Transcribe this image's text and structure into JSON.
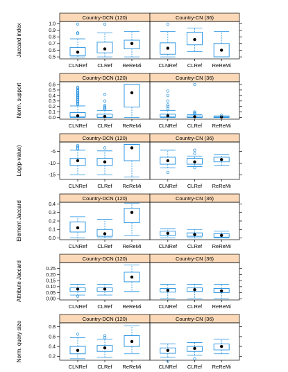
{
  "colors": {
    "box": "#1f8fe0",
    "strip": "#fbd9b8",
    "median": "#000000",
    "axis": "#000000"
  },
  "chart_data": [
    {
      "type": "box",
      "ylabel": "Jaccard index",
      "ylim": [
        0.47,
        1.03
      ],
      "yticks": [
        0.5,
        0.6,
        0.7,
        0.8,
        0.9,
        1.0
      ],
      "yticklabels": [
        "0.5",
        "0.6",
        "0.7",
        "0.8",
        "0.9",
        "1.0"
      ],
      "panels": [
        {
          "title": "Country-DCN (120)",
          "categories": [
            "CLNRef",
            "CLRef",
            "ReReMi"
          ],
          "boxes": [
            {
              "whislo": 0.5,
              "q1": 0.52,
              "med": 0.57,
              "q3": 0.64,
              "whishi": 0.77,
              "fliers": [
                0.85,
                0.86,
                0.99
              ]
            },
            {
              "whislo": 0.5,
              "q1": 0.56,
              "med": 0.62,
              "q3": 0.72,
              "whishi": 0.86,
              "fliers": [
                0.99
              ]
            },
            {
              "whislo": 0.5,
              "q1": 0.62,
              "med": 0.7,
              "q3": 0.75,
              "whishi": 0.88,
              "fliers": []
            }
          ]
        },
        {
          "title": "Country-CN (36)",
          "categories": [
            "CLNRef",
            "CLRef",
            "ReReMi"
          ],
          "boxes": [
            {
              "whislo": 0.5,
              "q1": 0.54,
              "med": 0.63,
              "q3": 0.71,
              "whishi": 0.88,
              "fliers": [
                0.99
              ]
            },
            {
              "whislo": 0.58,
              "q1": 0.68,
              "med": 0.76,
              "q3": 0.87,
              "whishi": 0.93,
              "fliers": []
            },
            {
              "whislo": 0.5,
              "q1": 0.5,
              "med": 0.6,
              "q3": 0.7,
              "whishi": 0.88,
              "fliers": []
            }
          ]
        }
      ]
    },
    {
      "type": "box",
      "ylabel": "Norm. support",
      "ylim": [
        -0.03,
        0.65
      ],
      "yticks": [
        0.0,
        0.1,
        0.2,
        0.3,
        0.4,
        0.5,
        0.6
      ],
      "yticklabels": [
        "0.0",
        "0.1",
        "0.2",
        "0.3",
        "0.4",
        "0.5",
        "0.6"
      ],
      "panels": [
        {
          "title": "Country-DCN (120)",
          "categories": [
            "CLNRef",
            "CLRef",
            "ReReMi"
          ],
          "boxes": [
            {
              "whislo": 0.0,
              "q1": 0.01,
              "med": 0.03,
              "q3": 0.09,
              "whishi": 0.21,
              "fliers": [
                0.24,
                0.26,
                0.28,
                0.3,
                0.32,
                0.34,
                0.36,
                0.38,
                0.4,
                0.42,
                0.44,
                0.46,
                0.48,
                0.5,
                0.53,
                0.55
              ]
            },
            {
              "whislo": 0.0,
              "q1": 0.005,
              "med": 0.02,
              "q3": 0.06,
              "whishi": 0.13,
              "fliers": [
                0.15,
                0.17,
                0.19,
                0.22,
                0.3,
                0.42
              ]
            },
            {
              "whislo": 0.0,
              "q1": 0.19,
              "med": 0.45,
              "q3": 0.6,
              "whishi": 0.6,
              "fliers": []
            }
          ]
        },
        {
          "title": "Country-CN (36)",
          "categories": [
            "CLNRef",
            "CLRef",
            "ReReMi"
          ],
          "boxes": [
            {
              "whislo": 0.0,
              "q1": 0.01,
              "med": 0.03,
              "q3": 0.06,
              "whishi": 0.13,
              "fliers": [
                0.16,
                0.2,
                0.23,
                0.3,
                0.4,
                0.48
              ]
            },
            {
              "whislo": 0.0,
              "q1": 0.005,
              "med": 0.015,
              "q3": 0.03,
              "whishi": 0.05,
              "fliers": [
                0.07,
                0.08,
                0.1,
                0.6
              ]
            },
            {
              "whislo": 0.0,
              "q1": 0.003,
              "med": 0.01,
              "q3": 0.02,
              "whishi": 0.03,
              "fliers": [
                0.04
              ]
            }
          ]
        }
      ]
    },
    {
      "type": "box",
      "ylabel": "Log(p-value)",
      "ylim": [
        -17,
        -1
      ],
      "yticks": [
        -5,
        -10,
        -15
      ],
      "yticklabels": [
        "-5",
        "-10",
        "-15"
      ],
      "panels": [
        {
          "title": "Country-DCN (120)",
          "categories": [
            "CLNRef",
            "CLRef",
            "ReReMi"
          ],
          "boxes": [
            {
              "whislo": -15,
              "q1": -11,
              "med": -9,
              "q3": -8,
              "whishi": -4.5,
              "fliers": [
                -2.5,
                -3.0,
                -3.5,
                -4.0
              ]
            },
            {
              "whislo": -15,
              "q1": -11,
              "med": -9.5,
              "q3": -8,
              "whishi": -4.8,
              "fliers": [
                -3.5
              ]
            },
            {
              "whislo": -16,
              "q1": -9,
              "med": -3.5,
              "q3": -2,
              "whishi": -2,
              "fliers": []
            }
          ]
        },
        {
          "title": "Country-CN (36)",
          "categories": [
            "CLNRef",
            "CLRef",
            "ReReMi"
          ],
          "boxes": [
            {
              "whislo": -12,
              "q1": -10.5,
              "med": -9,
              "q3": -7.5,
              "whishi": -4.5,
              "fliers": [
                -14
              ]
            },
            {
              "whislo": -11.5,
              "q1": -10.5,
              "med": -9.5,
              "q3": -8,
              "whishi": -7,
              "fliers": [
                -4.5,
                -6.0,
                -12.0
              ]
            },
            {
              "whislo": -11,
              "q1": -9.5,
              "med": -8.5,
              "q3": -7.5,
              "whishi": -6.5,
              "fliers": []
            }
          ]
        }
      ]
    },
    {
      "type": "box",
      "ylabel": "Element Jaccard",
      "ylim": [
        -0.02,
        0.42
      ],
      "yticks": [
        0.0,
        0.1,
        0.2,
        0.3,
        0.4
      ],
      "yticklabels": [
        "0.0",
        "0.1",
        "0.2",
        "0.3",
        "0.4"
      ],
      "panels": [
        {
          "title": "Country-DCN (120)",
          "categories": [
            "CLNRef",
            "CLRef",
            "ReReMi"
          ],
          "boxes": [
            {
              "whislo": 0.0,
              "q1": 0.07,
              "med": 0.12,
              "q3": 0.19,
              "whishi": 0.25,
              "fliers": []
            },
            {
              "whislo": 0.0,
              "q1": 0.02,
              "med": 0.05,
              "q3": 0.1,
              "whishi": 0.22,
              "fliers": []
            },
            {
              "whislo": 0.03,
              "q1": 0.18,
              "med": 0.3,
              "q3": 0.35,
              "whishi": 0.41,
              "fliers": []
            }
          ]
        },
        {
          "title": "Country-CN (36)",
          "categories": [
            "CLNRef",
            "CLRef",
            "ReReMi"
          ],
          "boxes": [
            {
              "whislo": 0.0,
              "q1": 0.03,
              "med": 0.055,
              "q3": 0.08,
              "whishi": 0.11,
              "fliers": []
            },
            {
              "whislo": 0.0,
              "q1": 0.02,
              "med": 0.04,
              "q3": 0.06,
              "whishi": 0.1,
              "fliers": []
            },
            {
              "whislo": 0.0,
              "q1": 0.01,
              "med": 0.03,
              "q3": 0.05,
              "whishi": 0.08,
              "fliers": []
            }
          ]
        }
      ]
    },
    {
      "type": "box",
      "ylabel": "Attribute Jaccard",
      "ylim": [
        -0.01,
        0.3
      ],
      "yticks": [
        0.0,
        0.05,
        0.1,
        0.15,
        0.2,
        0.25
      ],
      "yticklabels": [
        "0.00",
        "0.05",
        "0.10",
        "0.15",
        "0.20",
        "0.25"
      ],
      "panels": [
        {
          "title": "Country-DCN (120)",
          "categories": [
            "CLNRef",
            "CLRef",
            "ReReMi"
          ],
          "boxes": [
            {
              "whislo": 0.03,
              "q1": 0.06,
              "med": 0.08,
              "q3": 0.09,
              "whishi": 0.12,
              "fliers": [
                0.02
              ]
            },
            {
              "whislo": 0.03,
              "q1": 0.06,
              "med": 0.08,
              "q3": 0.09,
              "whishi": 0.12,
              "fliers": []
            },
            {
              "whislo": 0.06,
              "q1": 0.14,
              "med": 0.18,
              "q3": 0.22,
              "whishi": 0.28,
              "fliers": []
            }
          ]
        },
        {
          "title": "Country-CN (36)",
          "categories": [
            "CLNRef",
            "CLRef",
            "ReReMi"
          ],
          "boxes": [
            {
              "whislo": 0.0,
              "q1": 0.055,
              "med": 0.07,
              "q3": 0.085,
              "whishi": 0.12,
              "fliers": []
            },
            {
              "whislo": 0.0,
              "q1": 0.06,
              "med": 0.075,
              "q3": 0.09,
              "whishi": 0.12,
              "fliers": []
            },
            {
              "whislo": 0.0,
              "q1": 0.05,
              "med": 0.065,
              "q3": 0.085,
              "whishi": 0.12,
              "fliers": []
            }
          ]
        }
      ]
    },
    {
      "type": "box",
      "ylabel": "Norm. query size",
      "ylim": [
        0.12,
        0.88
      ],
      "yticks": [
        0.2,
        0.4,
        0.6,
        0.8
      ],
      "yticklabels": [
        "0.2",
        "0.4",
        "0.6",
        "0.8"
      ],
      "panels": [
        {
          "title": "Country-DCN (120)",
          "categories": [
            "CLNRef",
            "CLRef",
            "ReReMi"
          ],
          "boxes": [
            {
              "whislo": 0.15,
              "q1": 0.25,
              "med": 0.32,
              "q3": 0.4,
              "whishi": 0.58,
              "fliers": [
                0.65
              ]
            },
            {
              "whislo": 0.18,
              "q1": 0.3,
              "med": 0.37,
              "q3": 0.42,
              "whishi": 0.55,
              "fliers": [
                0.58,
                0.62
              ]
            },
            {
              "whislo": 0.25,
              "q1": 0.4,
              "med": 0.5,
              "q3": 0.62,
              "whishi": 0.82,
              "fliers": []
            }
          ]
        },
        {
          "title": "Country-CN (36)",
          "categories": [
            "CLNRef",
            "CLRef",
            "ReReMi"
          ],
          "boxes": [
            {
              "whislo": 0.18,
              "q1": 0.26,
              "med": 0.32,
              "q3": 0.37,
              "whishi": 0.45,
              "fliers": [
                0.1
              ]
            },
            {
              "whislo": 0.22,
              "q1": 0.3,
              "med": 0.36,
              "q3": 0.4,
              "whishi": 0.48,
              "fliers": [
                0.15
              ]
            },
            {
              "whislo": 0.25,
              "q1": 0.33,
              "med": 0.4,
              "q3": 0.45,
              "whishi": 0.55,
              "fliers": []
            }
          ]
        }
      ]
    }
  ]
}
